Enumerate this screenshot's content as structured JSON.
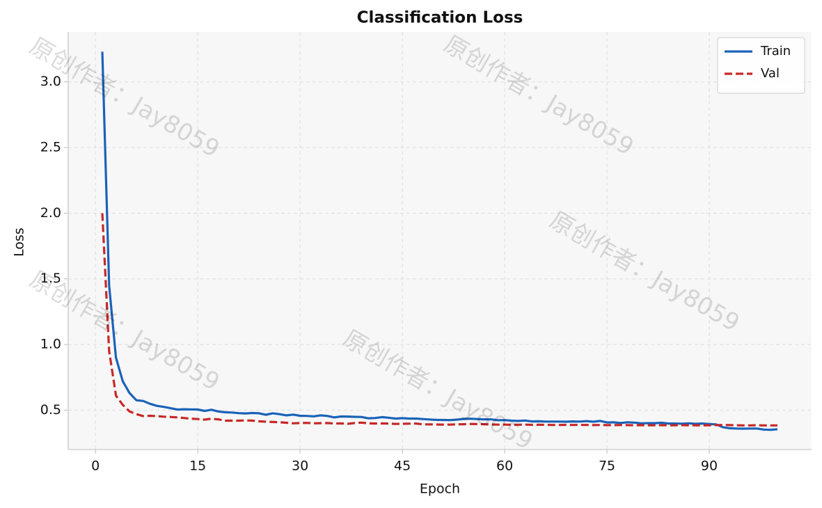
{
  "chart_data": {
    "type": "line",
    "title": "Classification Loss",
    "xlabel": "Epoch",
    "ylabel": "Loss",
    "watermark": "原创作者：Jay8059",
    "x": [
      1,
      2,
      3,
      4,
      5,
      6,
      7,
      8,
      9,
      10,
      11,
      12,
      13,
      14,
      15,
      16,
      17,
      18,
      19,
      20,
      21,
      22,
      23,
      24,
      25,
      26,
      27,
      28,
      29,
      30,
      31,
      32,
      33,
      34,
      35,
      36,
      37,
      38,
      39,
      40,
      41,
      42,
      43,
      44,
      45,
      46,
      47,
      48,
      49,
      50,
      51,
      52,
      53,
      54,
      55,
      56,
      57,
      58,
      59,
      60,
      61,
      62,
      63,
      64,
      65,
      66,
      67,
      68,
      69,
      70,
      71,
      72,
      73,
      74,
      75,
      76,
      77,
      78,
      79,
      80,
      81,
      82,
      83,
      84,
      85,
      86,
      87,
      88,
      89,
      90,
      91,
      92,
      93,
      94,
      95,
      96,
      97,
      98,
      99,
      100
    ],
    "series": [
      {
        "name": "Train",
        "color": "#1a62b8",
        "style": "solid",
        "values": [
          3.23,
          1.45,
          0.9,
          0.72,
          0.63,
          0.575,
          0.57,
          0.548,
          0.533,
          0.525,
          0.515,
          0.505,
          0.507,
          0.506,
          0.505,
          0.494,
          0.503,
          0.49,
          0.484,
          0.482,
          0.477,
          0.475,
          0.478,
          0.476,
          0.465,
          0.476,
          0.469,
          0.46,
          0.466,
          0.457,
          0.456,
          0.453,
          0.46,
          0.456,
          0.445,
          0.452,
          0.451,
          0.449,
          0.448,
          0.438,
          0.44,
          0.447,
          0.442,
          0.436,
          0.439,
          0.436,
          0.436,
          0.432,
          0.429,
          0.426,
          0.425,
          0.424,
          0.428,
          0.433,
          0.435,
          0.432,
          0.43,
          0.43,
          0.423,
          0.424,
          0.42,
          0.418,
          0.421,
          0.414,
          0.415,
          0.413,
          0.413,
          0.413,
          0.412,
          0.414,
          0.413,
          0.416,
          0.412,
          0.418,
          0.406,
          0.407,
          0.402,
          0.408,
          0.405,
          0.4,
          0.401,
          0.401,
          0.404,
          0.398,
          0.398,
          0.397,
          0.4,
          0.396,
          0.398,
          0.394,
          0.392,
          0.37,
          0.362,
          0.36,
          0.359,
          0.36,
          0.36,
          0.352,
          0.35,
          0.355
        ]
      },
      {
        "name": "Val",
        "color": "#c62828",
        "style": "dashed",
        "values": [
          2.0,
          0.95,
          0.61,
          0.54,
          0.49,
          0.47,
          0.455,
          0.457,
          0.455,
          0.45,
          0.448,
          0.445,
          0.44,
          0.435,
          0.432,
          0.428,
          0.435,
          0.43,
          0.42,
          0.42,
          0.42,
          0.422,
          0.42,
          0.415,
          0.412,
          0.41,
          0.408,
          0.404,
          0.4,
          0.402,
          0.403,
          0.4,
          0.401,
          0.402,
          0.398,
          0.399,
          0.396,
          0.402,
          0.405,
          0.4,
          0.398,
          0.399,
          0.398,
          0.395,
          0.396,
          0.397,
          0.398,
          0.392,
          0.392,
          0.391,
          0.39,
          0.39,
          0.392,
          0.393,
          0.395,
          0.394,
          0.393,
          0.391,
          0.39,
          0.39,
          0.389,
          0.389,
          0.39,
          0.388,
          0.389,
          0.388,
          0.387,
          0.387,
          0.388,
          0.387,
          0.388,
          0.387,
          0.386,
          0.387,
          0.386,
          0.386,
          0.387,
          0.386,
          0.385,
          0.386,
          0.385,
          0.385,
          0.386,
          0.385,
          0.385,
          0.386,
          0.385,
          0.385,
          0.384,
          0.385,
          0.386,
          0.387,
          0.386,
          0.385,
          0.384,
          0.384,
          0.385,
          0.384,
          0.384,
          0.384
        ]
      }
    ],
    "xlim": [
      -4,
      105
    ],
    "ylim": [
      0.2,
      3.38
    ],
    "xticks": [
      0,
      15,
      30,
      45,
      60,
      75,
      90
    ],
    "yticks": [
      {
        "value": 0.5,
        "label": "0.5"
      },
      {
        "value": 1.0,
        "label": "1.0"
      },
      {
        "value": 1.5,
        "label": "1.5"
      },
      {
        "value": 2.0,
        "label": "2.0"
      },
      {
        "value": 2.5,
        "label": "2.5"
      },
      {
        "value": 3.0,
        "label": "3.0"
      }
    ],
    "grid": true,
    "legend": "upper right"
  }
}
